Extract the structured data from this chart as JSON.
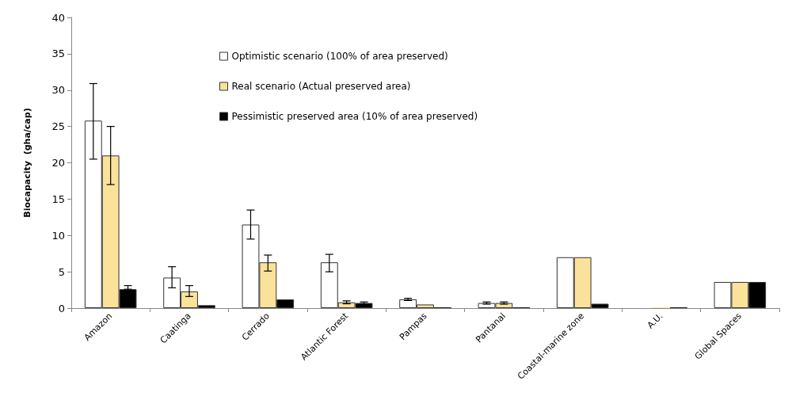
{
  "chart_data": {
    "type": "bar",
    "ylabel": "Biocapacity  (gha/cap)",
    "categories": [
      "Amazon",
      "Caatinga",
      "Cerrado",
      "Atlantic Forest",
      "Pampas",
      "Pantanal",
      "Coastal-marine zone",
      "A.U.",
      "Global Spaces"
    ],
    "series": [
      {
        "name": "Optimistic scenario (100% of area preserved)",
        "color": "#ffffff",
        "values": [
          25.8,
          4.2,
          11.5,
          6.3,
          1.2,
          0.7,
          7.0,
          0.1,
          3.6
        ],
        "errors": [
          [
            20.5,
            30.9
          ],
          [
            2.8,
            5.7
          ],
          [
            9.5,
            13.5
          ],
          [
            5.0,
            7.4
          ],
          [
            1.05,
            1.35
          ],
          [
            0.55,
            0.85
          ],
          null,
          null,
          null
        ]
      },
      {
        "name": "Real scenario (Actual preserved area)",
        "color": "#fbe29b",
        "values": [
          21.0,
          2.3,
          6.3,
          0.8,
          0.5,
          0.7,
          7.0,
          0.1,
          3.6
        ],
        "errors": [
          [
            17.0,
            25.0
          ],
          [
            1.6,
            3.1
          ],
          [
            5.1,
            7.3
          ],
          [
            0.6,
            1.0
          ],
          null,
          [
            0.55,
            0.85
          ],
          null,
          null,
          null
        ]
      },
      {
        "name": "Pessimistic preserved area (10% of area preserved)",
        "color": "#000000",
        "values": [
          2.6,
          0.4,
          1.2,
          0.7,
          0.1,
          0.1,
          0.6,
          0.1,
          3.6
        ],
        "errors": [
          [
            2.6,
            3.1
          ],
          null,
          null,
          [
            0.55,
            0.85
          ],
          null,
          null,
          null,
          null,
          null
        ]
      }
    ],
    "ylim": [
      0,
      40
    ],
    "yticks": [
      0,
      5,
      10,
      15,
      20,
      25,
      30,
      35,
      40
    ],
    "grid": false,
    "legend": "top"
  }
}
